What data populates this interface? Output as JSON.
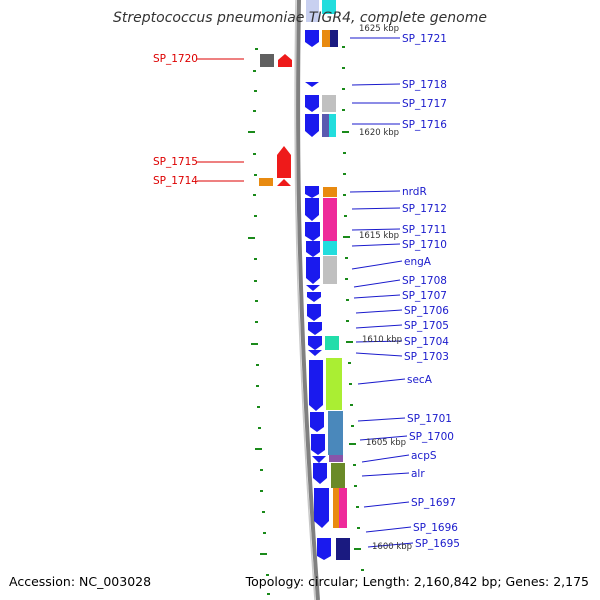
{
  "title": "Streptococcus pneumoniae TIGR4, complete genome",
  "footer": {
    "accession": "Accession: NC_003028",
    "topology": "Topology: circular; Length: 2,160,842 bp; Genes: 2,175"
  },
  "colors": {
    "backbone": "#888888",
    "gene_strand": "#1a1aee",
    "label_right": "#1a1acc",
    "label_left": "#dd0000",
    "tick": "#1a8a1a"
  },
  "scale_labels": [
    "1625 kbp",
    "1620 kbp",
    "1615 kbp",
    "1610 kbp",
    "1605 kbp",
    "1600 kbp"
  ],
  "left_genes": [
    "SP_1720",
    "SP_1715",
    "SP_1714"
  ],
  "right_genes": [
    "SP_1721",
    "SP_1718",
    "SP_1717",
    "SP_1716",
    "nrdR",
    "SP_1712",
    "SP_1711",
    "SP_1710",
    "engA",
    "SP_1708",
    "SP_1707",
    "SP_1706",
    "SP_1705",
    "SP_1704",
    "SP_1703",
    "secA",
    "SP_1701",
    "SP_1700",
    "acpS",
    "alr",
    "SP_1697",
    "SP_1696",
    "SP_1695"
  ]
}
